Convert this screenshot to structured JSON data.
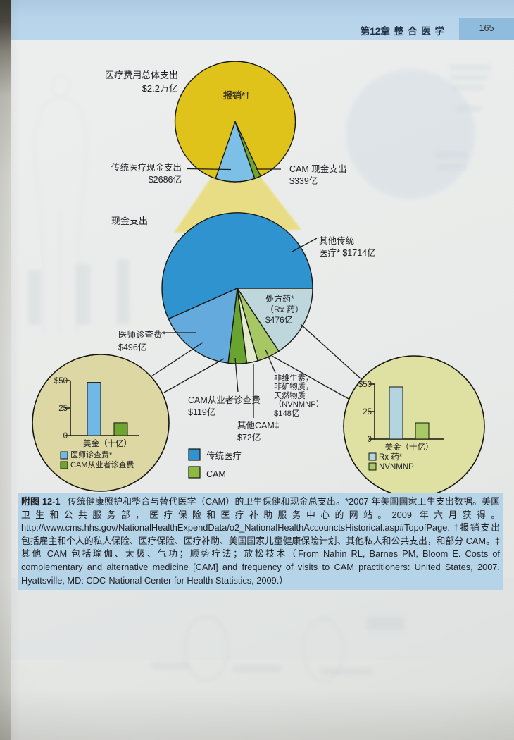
{
  "header": {
    "chapter_prefix": "第12章",
    "chapter_title": "整 合 医 学",
    "page_number": "165"
  },
  "figure": {
    "top_pie": {
      "total_label": "医疗费用总体支出",
      "total_value": "$2.2万亿",
      "reimbursed_label": "报销*†",
      "conventional_label": "传统医疗现金支出",
      "conventional_value": "$2686亿",
      "cam_label": "CAM 现金支出",
      "cam_value": "$339亿"
    },
    "bottom_pie": {
      "title": "现金支出",
      "other_conventional_l1": "其他传统",
      "other_conventional_l2": "医疗* $1714亿",
      "rx_l1": "处方药*",
      "rx_l2": "（Rx 药）",
      "rx_l3": "$476亿",
      "physician_l1": "医师诊查费*",
      "physician_l2": "$496亿",
      "cam_practitioner_l1": "CAM从业者诊查费",
      "cam_practitioner_l2": "$119亿",
      "other_cam_l1": "其他CAM‡",
      "other_cam_l2": "$72亿",
      "nvnmnp_l1": "非维生素，",
      "nvnmnp_l2": "非矿物质，",
      "nvnmnp_l3": "天然物质",
      "nvnmnp_l4": "（NVNMNP）",
      "nvnmnp_l5": "$148亿"
    },
    "left_inset": {
      "tick_50": "$50",
      "tick_25": "25",
      "tick_0": "0",
      "x_label": "美金（十亿）",
      "legend_1": "医师诊查费*",
      "legend_2": "CAM从业者诊查费"
    },
    "right_inset": {
      "tick_50": "$50",
      "tick_25": "25",
      "tick_0": "0",
      "x_label": "美金（十亿）",
      "legend_1": "Rx 药*",
      "legend_2": "NVNMNP"
    },
    "main_legend": {
      "conventional": "传统医疗",
      "cam": "CAM"
    },
    "colors": {
      "conventional_blue": "#2f93d0",
      "physician_blue": "#64aadc",
      "rx_light_blue": "#bed7dd",
      "cam_green": "#68a42f",
      "other_cam_pale_green": "#e1eacb",
      "nvnmnp_green": "#a7c765",
      "reimbursed_yellow": "#e0c31a",
      "cash_wedge_blue": "#7cc0e8",
      "inset_circle_beige": "#dcd7a3",
      "caption_highlight": "#b6d4e7",
      "header_band_blue": "#b8d4ea",
      "page_number_box_blue": "#8fbcdc"
    }
  },
  "caption": {
    "label": "附图 12-1",
    "text": "传统健康照护和整合与替代医学（CAM）的卫生保健和现金总支出。*2007 年美国国家卫生支出数据。美国卫生和公共服务部，医疗保险和医疗补助服务中心的网站。2009 年六月获得。http://www.cms.hhs.gov/NationalHealthExpendData/o2_NationalHealthAccounctsHistorical.asp#TopofPage. †报销支出包括雇主和个人的私人保险、医疗保险、医疗补助、美国国家儿童健康保险计划、其他私人和公共支出，和部分 CAM。‡其他 CAM 包括瑜伽、太极、气功；顺势疗法；放松技术（From Nahin RL, Barnes PM, Bloom E. Costs of complementary and alternative medicine [CAM] and frequency of visits to CAM practitioners: United States, 2007. Hyattsville, MD: CDC-National Center for Health Statistics, 2009.）"
  },
  "chart_data": [
    {
      "type": "pie",
      "position": "top",
      "title": "医疗费用总体支出 $2.2万亿",
      "unit": "亿美元",
      "slices": [
        {
          "label": "报销*†",
          "value": 18975
        },
        {
          "label": "传统医疗现金支出",
          "value": 2686
        },
        {
          "label": "CAM 现金支出",
          "value": 339
        }
      ]
    },
    {
      "type": "pie",
      "position": "center",
      "title": "现金支出",
      "unit": "亿美元",
      "slices": [
        {
          "label": "其他传统医疗*",
          "value": 1714
        },
        {
          "label": "医师诊查费*",
          "value": 496
        },
        {
          "label": "处方药*（Rx 药）",
          "value": 476
        },
        {
          "label": "非维生素，非矿物质，天然物质（NVNMNP）",
          "value": 148
        },
        {
          "label": "CAM从业者诊查费",
          "value": 119
        },
        {
          "label": "其他CAM‡",
          "value": 72
        }
      ]
    },
    {
      "type": "bar",
      "position": "left-inset",
      "categories": [
        "医师诊查费*",
        "CAM从业者诊查费"
      ],
      "values": [
        49.6,
        11.9
      ],
      "xlabel": "美金（十亿）",
      "ylabel": "",
      "ylim": [
        0,
        50
      ],
      "yticks": [
        "$50",
        "25",
        "0"
      ]
    },
    {
      "type": "bar",
      "position": "right-inset",
      "categories": [
        "Rx 药*",
        "NVNMNP"
      ],
      "values": [
        47.6,
        14.8
      ],
      "xlabel": "美金（十亿）",
      "ylabel": "",
      "ylim": [
        0,
        50
      ],
      "yticks": [
        "$50",
        "25",
        "0"
      ]
    }
  ]
}
